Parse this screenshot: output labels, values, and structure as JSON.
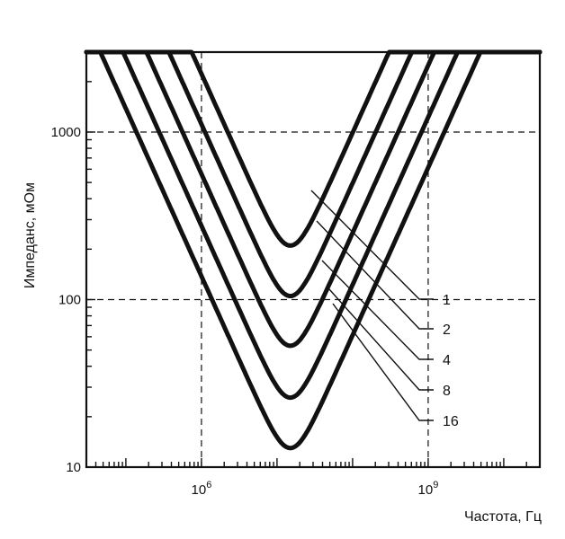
{
  "chart_data": {
    "type": "line",
    "title": "",
    "xlabel": "Частота, Гц",
    "ylabel": "Импеданс, мОм",
    "x_scale": "log",
    "y_scale": "log",
    "xlim": [
      30000,
      30000000000
    ],
    "ylim": [
      10,
      3000
    ],
    "grid": true,
    "x_tick_labels": [
      {
        "value": 1000000,
        "base": "10",
        "exp": "6"
      },
      {
        "value": 1000000000,
        "base": "10",
        "exp": "9"
      }
    ],
    "y_tick_labels": [
      {
        "value": 10,
        "label": "10"
      },
      {
        "value": 100,
        "label": "100"
      },
      {
        "value": 1000,
        "label": "1000"
      }
    ],
    "series": [
      {
        "name": "1",
        "min_freq": 15000000,
        "min_value": 210
      },
      {
        "name": "2",
        "min_freq": 15000000,
        "min_value": 105
      },
      {
        "name": "4",
        "min_freq": 15000000,
        "min_value": 53
      },
      {
        "name": "8",
        "min_freq": 15000000,
        "min_value": 26
      },
      {
        "name": "16",
        "min_freq": 15000000,
        "min_value": 13
      }
    ]
  }
}
